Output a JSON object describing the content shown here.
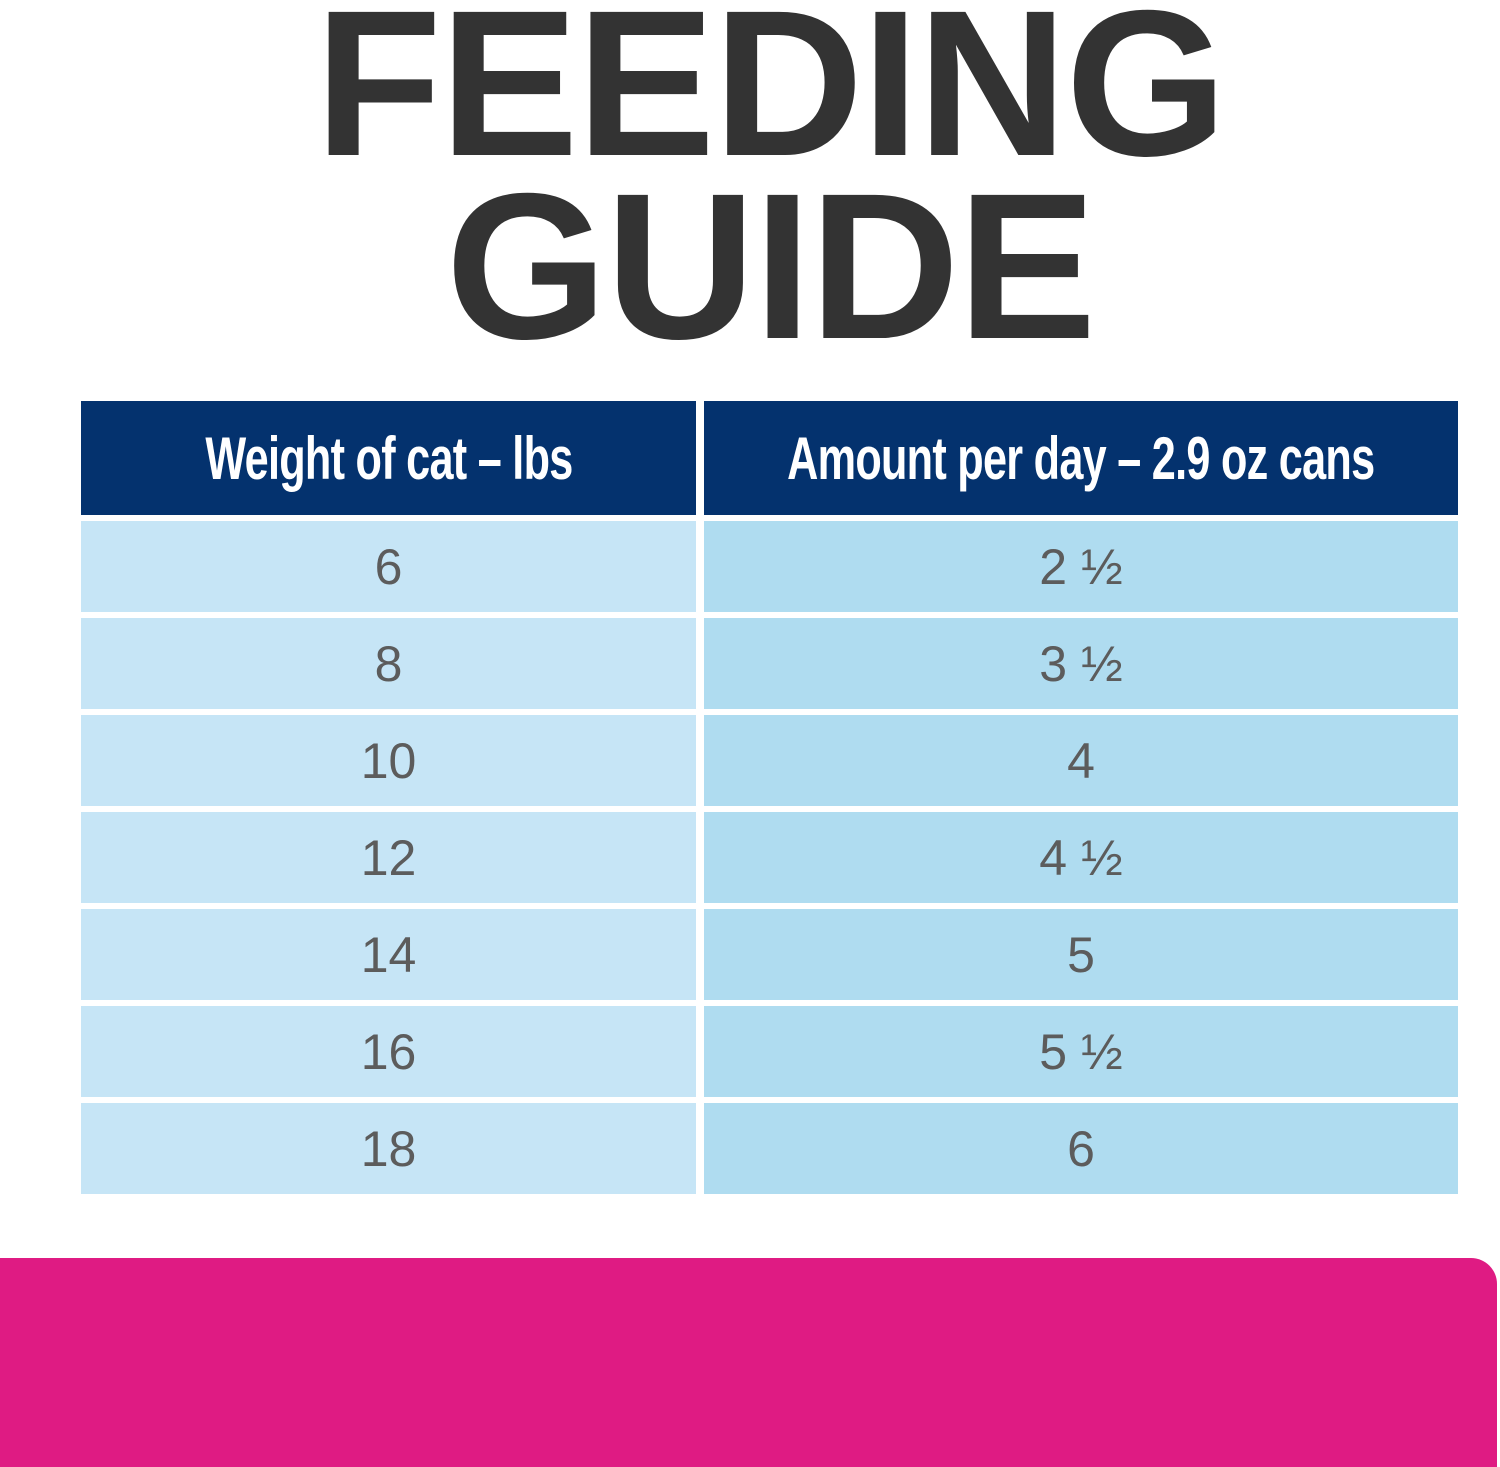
{
  "title": {
    "line1": "FEEDING",
    "line2": "GUIDE"
  },
  "table": {
    "headers": [
      "Weight of cat – lbs",
      "Amount per day – 2.9 oz cans"
    ],
    "rows": [
      [
        "6",
        "2 ½"
      ],
      [
        "8",
        "3 ½"
      ],
      [
        "10",
        "4"
      ],
      [
        "12",
        "4 ½"
      ],
      [
        "14",
        "5"
      ],
      [
        "16",
        "5 ½"
      ],
      [
        "18",
        "6"
      ]
    ]
  },
  "colors": {
    "header": "#04326e",
    "col1": "#c6e5f6",
    "col2": "#afdcf0",
    "title": "#333333",
    "banner": "#df1b83"
  }
}
